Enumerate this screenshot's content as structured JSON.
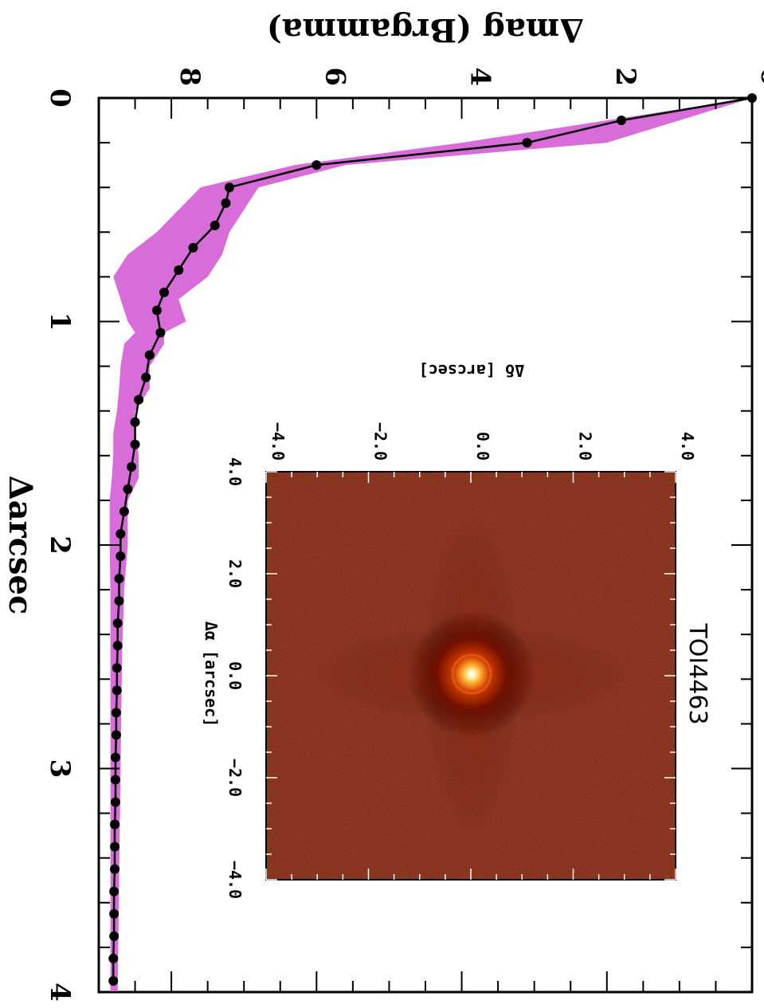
{
  "chart_data": {
    "type": "line",
    "orientation": "rotated 90 degrees clockwise",
    "xlabel": "Δarcsec",
    "ylabel": "Δmag (Brgamma)",
    "xlim": [
      0,
      4
    ],
    "ylim": [
      0,
      9
    ],
    "x_ticks": [
      "0",
      "1",
      "2",
      "3",
      "4"
    ],
    "y_ticks": [
      "0",
      "2",
      "4",
      "6",
      "8"
    ],
    "grid": false,
    "band_color": "#d86cd8",
    "series": [
      {
        "type": "line+markers",
        "color": "#000000",
        "x": [
          0.0,
          0.1,
          0.2,
          0.3,
          0.4,
          0.47,
          0.57,
          0.67,
          0.77,
          0.87,
          0.95,
          1.05,
          1.15,
          1.25,
          1.35,
          1.45,
          1.55,
          1.65,
          1.75,
          1.85,
          1.95,
          2.05,
          2.15,
          2.25,
          2.35,
          2.45,
          2.55,
          2.65,
          2.75,
          2.85,
          2.95,
          3.05,
          3.15,
          3.25,
          3.35,
          3.45,
          3.55,
          3.65,
          3.75,
          3.85,
          3.95
        ],
        "y": [
          0.0,
          1.8,
          3.1,
          6.0,
          7.2,
          7.25,
          7.4,
          7.7,
          7.9,
          8.1,
          8.2,
          8.15,
          8.3,
          8.35,
          8.45,
          8.5,
          8.5,
          8.55,
          8.6,
          8.65,
          8.7,
          8.7,
          8.72,
          8.72,
          8.74,
          8.74,
          8.75,
          8.75,
          8.76,
          8.76,
          8.77,
          8.77,
          8.77,
          8.78,
          8.78,
          8.78,
          8.79,
          8.79,
          8.79,
          8.8,
          8.8
        ]
      }
    ],
    "band": {
      "x": [
        0.0,
        0.2,
        0.3,
        0.4,
        0.5,
        0.6,
        0.7,
        0.8,
        0.9,
        1.0,
        1.05,
        1.1,
        1.2,
        1.3,
        1.4,
        1.5,
        1.6,
        1.7,
        1.8,
        1.9,
        2.0,
        2.2,
        2.5,
        3.0,
        3.5,
        4.0
      ],
      "lower": [
        0.0,
        2.0,
        5.6,
        6.8,
        7.0,
        7.2,
        7.3,
        7.5,
        7.9,
        7.8,
        8.1,
        8.1,
        8.3,
        8.3,
        8.5,
        8.5,
        8.45,
        8.45,
        8.6,
        8.6,
        8.6,
        8.65,
        8.68,
        8.7,
        8.72,
        8.74
      ],
      "upper": [
        0.0,
        4.0,
        6.3,
        7.6,
        7.9,
        8.2,
        8.6,
        8.8,
        8.7,
        8.6,
        8.5,
        8.65,
        8.7,
        8.72,
        8.75,
        8.8,
        8.8,
        8.82,
        8.85,
        8.85,
        8.85,
        8.84,
        8.84,
        8.84,
        8.84,
        8.84
      ]
    },
    "inset": {
      "title": "TOI4463",
      "xlabel": "Δα [arcsec]",
      "ylabel": "Δδ [arcsec]",
      "x_ticks": [
        "4.0",
        "2.0",
        "0.0",
        "−2.0",
        "−4.0"
      ],
      "y_ticks": [
        "−4.0",
        "−2.0",
        "0.0",
        "2.0",
        "4.0"
      ],
      "xlim": [
        4.0,
        -4.0
      ],
      "ylim": [
        -4.0,
        4.0
      ],
      "colormap": "red-temperature"
    }
  }
}
